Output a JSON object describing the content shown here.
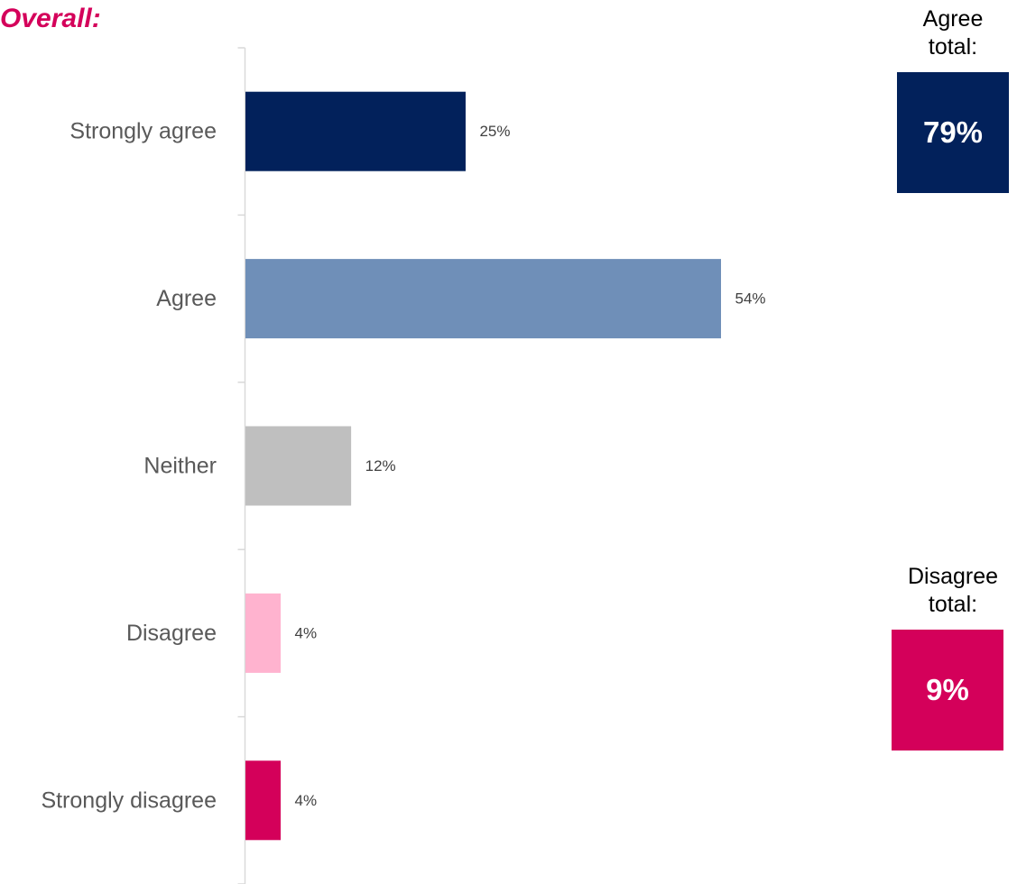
{
  "chart_data": {
    "type": "bar",
    "orientation": "horizontal",
    "title": "Overall:",
    "categories": [
      "Strongly agree",
      "Agree",
      "Neither",
      "Disagree",
      "Strongly disagree"
    ],
    "values": [
      25,
      54,
      12,
      4,
      4
    ],
    "value_labels": [
      "25%",
      "54%",
      "12%",
      "4%",
      "4%"
    ],
    "colors": [
      "#02215b",
      "#6f8fb8",
      "#bfbfbf",
      "#ffb3cf",
      "#d4005a"
    ],
    "xlim": [
      0,
      60
    ],
    "grid": false,
    "legend": "none"
  },
  "summary": {
    "agree": {
      "label_line1": "Agree",
      "label_line2": "total:",
      "value": "79%",
      "color": "#02215b"
    },
    "disagree": {
      "label_line1": "Disagree",
      "label_line2": "total:",
      "value": "9%",
      "color": "#d4005a"
    }
  }
}
